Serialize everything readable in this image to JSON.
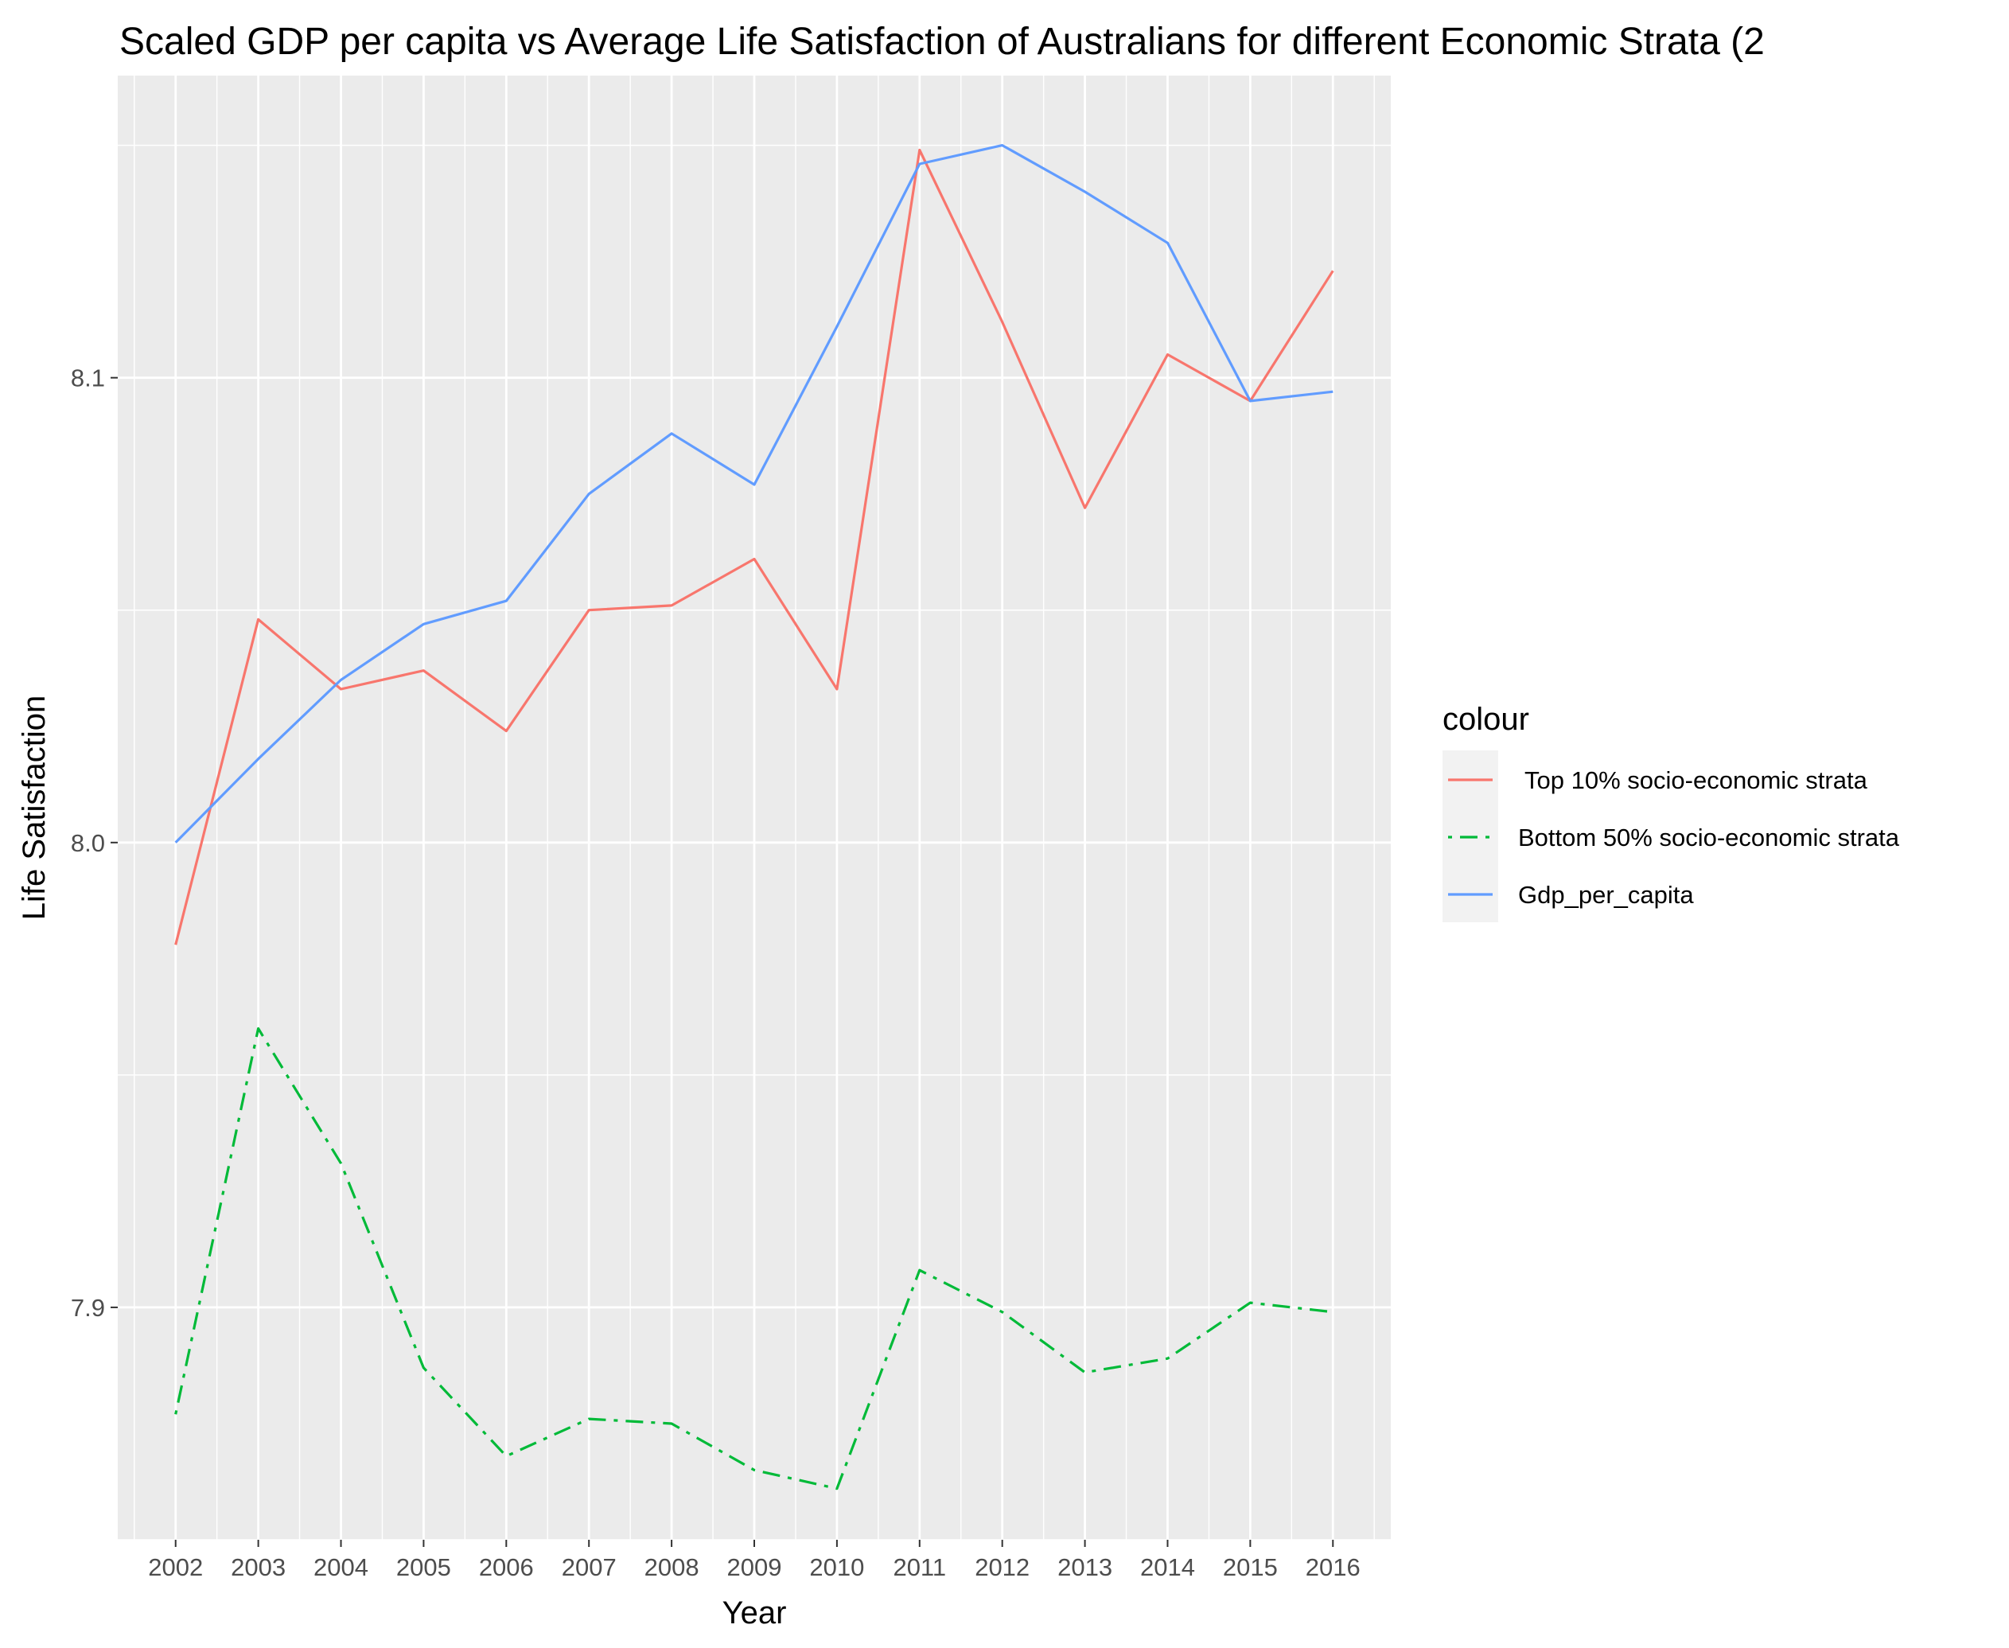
{
  "chart_data": {
    "type": "line",
    "title": "Scaled GDP per capita vs Average Life Satisfaction of Australians for different Economic Strata (2",
    "xlabel": "Year",
    "ylabel": "Life Satisfaction",
    "x": [
      2002,
      2003,
      2004,
      2005,
      2006,
      2007,
      2008,
      2009,
      2010,
      2011,
      2012,
      2013,
      2014,
      2015,
      2016
    ],
    "xlim": [
      2001.3,
      2016.7
    ],
    "ylim": [
      7.85,
      8.165
    ],
    "y_ticks": [
      7.9,
      8.0,
      8.1
    ],
    "y_tick_labels": [
      "7.9",
      "8.0",
      "8.1"
    ],
    "x_tick_labels": [
      "2002",
      "2003",
      "2004",
      "2005",
      "2006",
      "2007",
      "2008",
      "2009",
      "2010",
      "2011",
      "2012",
      "2013",
      "2014",
      "2015",
      "2016"
    ],
    "grid": true,
    "legend": {
      "title": "colour",
      "position": "right"
    },
    "series": [
      {
        "name": " Top 10% socio-economic strata",
        "color": "#F8766D",
        "linetype": "solid",
        "values": [
          7.978,
          8.048,
          8.033,
          8.037,
          8.024,
          8.05,
          8.051,
          8.061,
          8.033,
          8.149,
          8.112,
          8.072,
          8.105,
          8.095,
          8.123
        ]
      },
      {
        "name": "Bottom 50% socio-economic strata",
        "color": "#00BA38",
        "linetype": "dotdash",
        "values": [
          7.877,
          7.96,
          7.931,
          7.887,
          7.868,
          7.876,
          7.875,
          7.865,
          7.861,
          7.908,
          7.899,
          7.886,
          7.889,
          7.901,
          7.899
        ]
      },
      {
        "name": "Gdp_per_capita",
        "color": "#619CFF",
        "linetype": "solid",
        "values": [
          8.0,
          8.018,
          8.035,
          8.047,
          8.052,
          8.075,
          8.088,
          8.077,
          8.111,
          8.146,
          8.15,
          8.14,
          8.129,
          8.095,
          8.097
        ]
      }
    ]
  }
}
